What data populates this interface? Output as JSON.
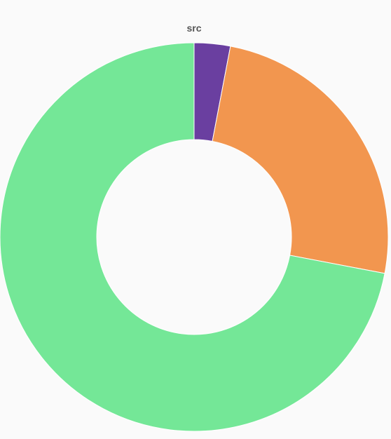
{
  "chart_data": {
    "type": "pie",
    "title": "src",
    "donut": true,
    "slices": [
      {
        "value": 3,
        "color": "#6a3fa0"
      },
      {
        "value": 25,
        "color": "#f2964f"
      },
      {
        "value": 72,
        "color": "#74e797"
      }
    ]
  }
}
